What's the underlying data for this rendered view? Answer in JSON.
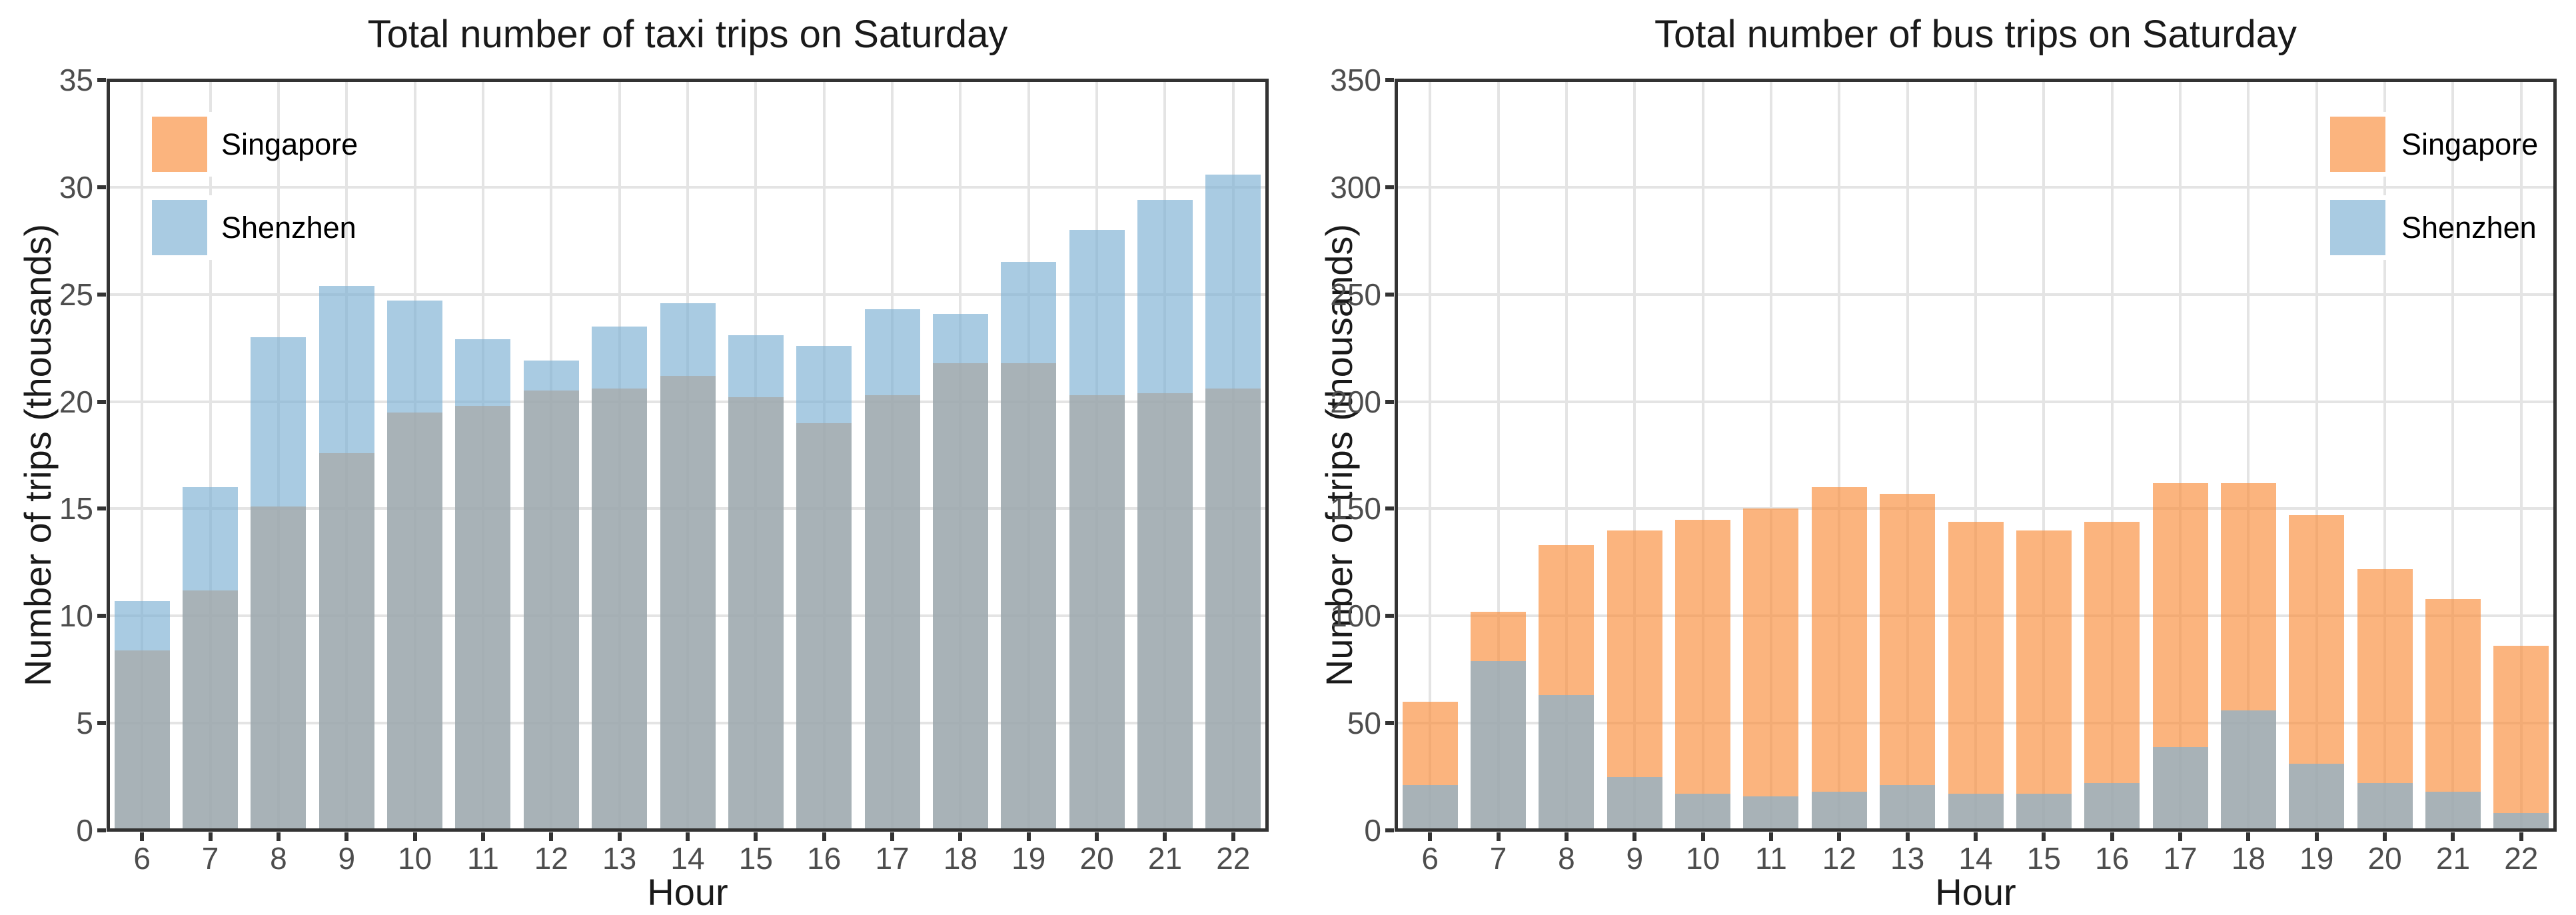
{
  "styles": {
    "background": "#FFFFFF",
    "grid_color": "#E4E4E4",
    "panel_border_color": "#333333",
    "tick_color": "#333333",
    "tick_label_color": "#4D4D4D",
    "title_color": "#1A1A1A",
    "singapore_display_color": "#FBB47E",
    "shenzhen_display_color": "#A9CBE2",
    "overlap_display_color": "#A8B2B7"
  },
  "chart_data": [
    {
      "type": "bar",
      "bar_mode": "overlay-transparent",
      "title": "Total number of taxi trips on Saturday",
      "xlabel": "Hour",
      "ylabel": "Number of trips (thousands)",
      "categories": [
        6,
        7,
        8,
        9,
        10,
        11,
        12,
        13,
        14,
        15,
        16,
        17,
        18,
        19,
        20,
        21,
        22
      ],
      "series": [
        {
          "name": "Singapore",
          "fill": "rgba(249,142,61,0.667)",
          "display_color": "#FBB47E",
          "values": [
            8.4,
            11.2,
            15.1,
            17.6,
            19.5,
            19.8,
            20.5,
            20.6,
            21.2,
            20.2,
            19.0,
            20.3,
            21.8,
            21.8,
            20.3,
            20.4,
            20.6
          ]
        },
        {
          "name": "Shenzhen",
          "fill": "rgba(126,177,211,0.667)",
          "display_color": "#A9CBE2",
          "values": [
            10.7,
            16.0,
            23.0,
            25.4,
            24.7,
            22.9,
            21.9,
            23.5,
            24.6,
            23.1,
            22.6,
            24.3,
            24.1,
            26.5,
            28.0,
            29.4,
            30.6
          ]
        }
      ],
      "ylim": [
        0,
        35
      ],
      "yticks": [
        0,
        5,
        10,
        15,
        20,
        25,
        30,
        35
      ],
      "grid": true,
      "legend_position": "top-left"
    },
    {
      "type": "bar",
      "bar_mode": "overlay-transparent",
      "title": "Total number of bus trips on Saturday",
      "xlabel": "Hour",
      "ylabel": "Number of trips (thousands)",
      "categories": [
        6,
        7,
        8,
        9,
        10,
        11,
        12,
        13,
        14,
        15,
        16,
        17,
        18,
        19,
        20,
        21,
        22
      ],
      "series": [
        {
          "name": "Singapore",
          "fill": "rgba(249,142,61,0.667)",
          "display_color": "#FBB47E",
          "values": [
            60,
            102,
            133,
            140,
            145,
            150,
            160,
            157,
            144,
            140,
            144,
            162,
            162,
            147,
            122,
            108,
            86
          ]
        },
        {
          "name": "Shenzhen",
          "fill": "rgba(126,177,211,0.667)",
          "display_color": "#A9CBE2",
          "values": [
            21,
            79,
            63,
            25,
            17,
            16,
            18,
            21,
            17,
            17,
            22,
            39,
            56,
            31,
            22,
            18,
            8
          ]
        }
      ],
      "ylim": [
        0,
        350
      ],
      "yticks": [
        0,
        50,
        100,
        150,
        200,
        250,
        300,
        350
      ],
      "grid": true,
      "legend_position": "top-right"
    }
  ]
}
